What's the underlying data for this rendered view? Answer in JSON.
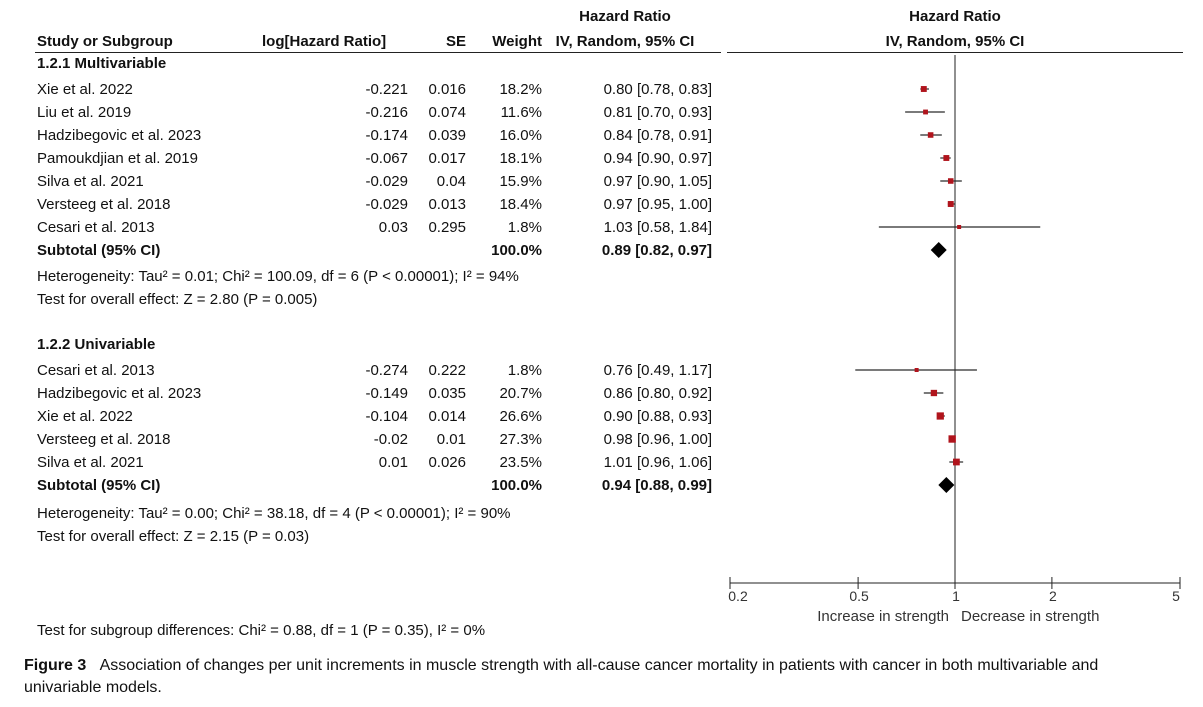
{
  "header": {
    "study": "Study or Subgroup",
    "loghr": "log[Hazard Ratio]",
    "se": "SE",
    "weight": "Weight",
    "hr_title": "Hazard Ratio",
    "hr_method": "IV, Random, 95% CI",
    "plot_title": "Hazard Ratio",
    "plot_method": "IV, Random, 95% CI"
  },
  "subgroups": [
    {
      "title": "1.2.1 Multivariable",
      "studies": [
        {
          "study": "Xie et al. 2022",
          "loghr": "-0.221",
          "se": "0.016",
          "weight": "18.2%",
          "ci": "0.80 [0.78, 0.83]"
        },
        {
          "study": "Liu et al. 2019",
          "loghr": "-0.216",
          "se": "0.074",
          "weight": "11.6%",
          "ci": "0.81 [0.70, 0.93]"
        },
        {
          "study": "Hadzibegovic et al. 2023",
          "loghr": "-0.174",
          "se": "0.039",
          "weight": "16.0%",
          "ci": "0.84 [0.78, 0.91]"
        },
        {
          "study": "Pamoukdjian et al. 2019",
          "loghr": "-0.067",
          "se": "0.017",
          "weight": "18.1%",
          "ci": "0.94 [0.90, 0.97]"
        },
        {
          "study": "Silva et al. 2021",
          "loghr": "-0.029",
          "se": "0.04",
          "weight": "15.9%",
          "ci": "0.97 [0.90, 1.05]"
        },
        {
          "study": "Versteeg et al. 2018",
          "loghr": "-0.029",
          "se": "0.013",
          "weight": "18.4%",
          "ci": "0.97 [0.95, 1.00]"
        },
        {
          "study": "Cesari et al. 2013",
          "loghr": "0.03",
          "se": "0.295",
          "weight": "1.8%",
          "ci": "1.03 [0.58, 1.84]"
        }
      ],
      "subtotal": {
        "label": "Subtotal (95% CI)",
        "weight": "100.0%",
        "ci": "0.89 [0.82, 0.97]"
      },
      "heterogeneity": "Heterogeneity: Tau² = 0.01; Chi² = 100.09, df = 6 (P < 0.00001); I² = 94%",
      "overall": "Test for overall effect: Z = 2.80 (P = 0.005)"
    },
    {
      "title": "1.2.2 Univariable",
      "studies": [
        {
          "study": "Cesari et al. 2013",
          "loghr": "-0.274",
          "se": "0.222",
          "weight": "1.8%",
          "ci": "0.76 [0.49, 1.17]"
        },
        {
          "study": "Hadzibegovic et al. 2023",
          "loghr": "-0.149",
          "se": "0.035",
          "weight": "20.7%",
          "ci": "0.86 [0.80, 0.92]"
        },
        {
          "study": "Xie et al. 2022",
          "loghr": "-0.104",
          "se": "0.014",
          "weight": "26.6%",
          "ci": "0.90 [0.88, 0.93]"
        },
        {
          "study": "Versteeg et al. 2018",
          "loghr": "-0.02",
          "se": "0.01",
          "weight": "27.3%",
          "ci": "0.98 [0.96, 1.00]"
        },
        {
          "study": "Silva et al. 2021",
          "loghr": "0.01",
          "se": "0.026",
          "weight": "23.5%",
          "ci": "1.01 [0.96, 1.06]"
        }
      ],
      "subtotal": {
        "label": "Subtotal (95% CI)",
        "weight": "100.0%",
        "ci": "0.94 [0.88, 0.99]"
      },
      "heterogeneity": "Heterogeneity: Tau² = 0.00; Chi² = 38.18, df = 4 (P < 0.00001); I² = 90%",
      "overall": "Test for overall effect: Z = 2.15 (P = 0.03)"
    }
  ],
  "subgroup_diff": "Test for subgroup differences: Chi² = 0.88, df = 1 (P = 0.35), I² = 0%",
  "caption": {
    "label": "Figure 3",
    "text": "Association of changes per unit increments in muscle strength with all-cause cancer mortality in patients with cancer in both multivariable and univariable models."
  },
  "colors": {
    "marker": "#b0141c",
    "diamond": "#000000",
    "line": "#222222"
  },
  "chart_data": {
    "type": "forest",
    "title": "Hazard Ratio",
    "subtitle": "IV, Random, 95% CI",
    "x_scale": "log",
    "xlim": [
      0.2,
      5
    ],
    "ticks": [
      0.2,
      0.5,
      1,
      2,
      5
    ],
    "tick_labels": [
      "0.2",
      "0.5",
      "1",
      "2",
      "5"
    ],
    "reference_line": 1,
    "xlabel_left": "Increase in strength",
    "xlabel_right": "Decrease in strength",
    "rows": [
      {
        "group": 0,
        "kind": "study",
        "hr": 0.8,
        "lo": 0.78,
        "hi": 0.83,
        "weight": 18.2
      },
      {
        "group": 0,
        "kind": "study",
        "hr": 0.81,
        "lo": 0.7,
        "hi": 0.93,
        "weight": 11.6
      },
      {
        "group": 0,
        "kind": "study",
        "hr": 0.84,
        "lo": 0.78,
        "hi": 0.91,
        "weight": 16.0
      },
      {
        "group": 0,
        "kind": "study",
        "hr": 0.94,
        "lo": 0.9,
        "hi": 0.97,
        "weight": 18.1
      },
      {
        "group": 0,
        "kind": "study",
        "hr": 0.97,
        "lo": 0.9,
        "hi": 1.05,
        "weight": 15.9
      },
      {
        "group": 0,
        "kind": "study",
        "hr": 0.97,
        "lo": 0.95,
        "hi": 1.0,
        "weight": 18.4
      },
      {
        "group": 0,
        "kind": "study",
        "hr": 1.03,
        "lo": 0.58,
        "hi": 1.84,
        "weight": 1.8
      },
      {
        "group": 0,
        "kind": "subtotal",
        "hr": 0.89,
        "lo": 0.82,
        "hi": 0.97,
        "weight": 100.0
      },
      {
        "group": 1,
        "kind": "study",
        "hr": 0.76,
        "lo": 0.49,
        "hi": 1.17,
        "weight": 1.8
      },
      {
        "group": 1,
        "kind": "study",
        "hr": 0.86,
        "lo": 0.8,
        "hi": 0.92,
        "weight": 20.7
      },
      {
        "group": 1,
        "kind": "study",
        "hr": 0.9,
        "lo": 0.88,
        "hi": 0.93,
        "weight": 26.6
      },
      {
        "group": 1,
        "kind": "study",
        "hr": 0.98,
        "lo": 0.96,
        "hi": 1.0,
        "weight": 27.3
      },
      {
        "group": 1,
        "kind": "study",
        "hr": 1.01,
        "lo": 0.96,
        "hi": 1.06,
        "weight": 23.5
      },
      {
        "group": 1,
        "kind": "subtotal",
        "hr": 0.94,
        "lo": 0.88,
        "hi": 0.99,
        "weight": 100.0
      }
    ]
  }
}
